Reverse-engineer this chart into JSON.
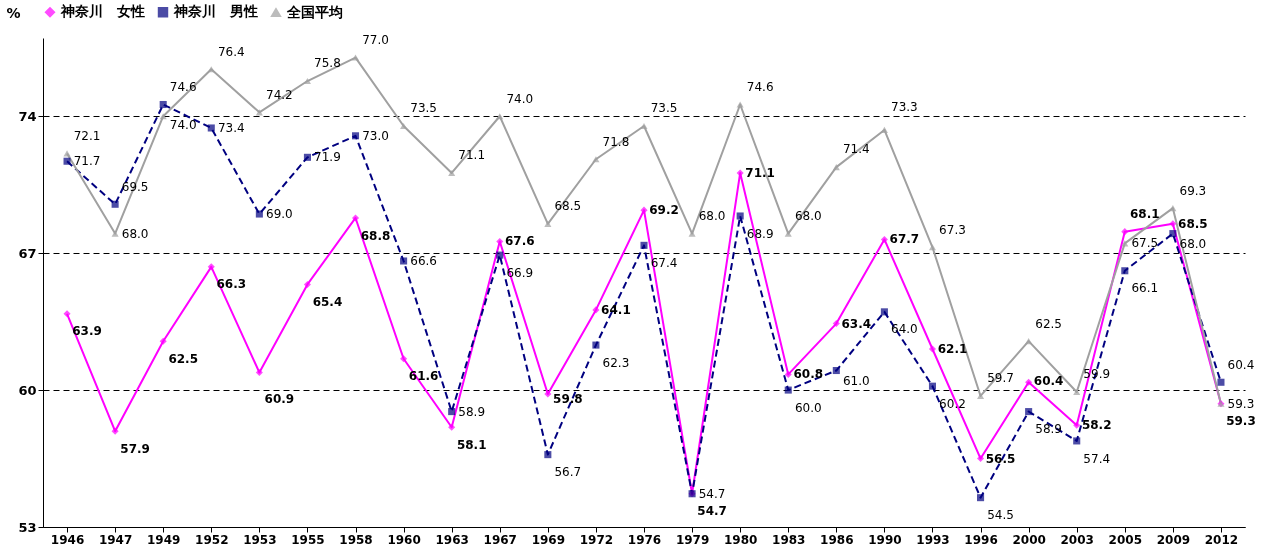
{
  "chart_data": {
    "type": "line",
    "ylabel": "%",
    "categories": [
      "1946",
      "1947",
      "1949",
      "1952",
      "1953",
      "1955",
      "1958",
      "1960",
      "1963",
      "1967",
      "1969",
      "1972",
      "1976",
      "1979",
      "1980",
      "1983",
      "1986",
      "1990",
      "1993",
      "1996",
      "2000",
      "2003",
      "2005",
      "2009",
      "2012"
    ],
    "series": [
      {
        "name": "神奈川　女性",
        "color": "#ff00ff",
        "marker": "diamond",
        "line_style": "solid",
        "values": [
          63.9,
          57.9,
          62.5,
          66.3,
          60.9,
          65.4,
          68.8,
          61.6,
          58.1,
          67.6,
          59.8,
          64.1,
          69.2,
          54.7,
          71.1,
          60.8,
          63.4,
          67.7,
          62.1,
          56.5,
          60.4,
          58.2,
          68.1,
          68.5,
          59.3
        ],
        "value_labels": [
          "63.9",
          "57.9",
          "62.5",
          "66.3",
          "60.9",
          "65.4",
          "68.8",
          "61.6",
          "58.1",
          "67.6",
          "59.8",
          "64.1",
          "69.2",
          "54.7",
          "71.1",
          "60.8",
          "63.4",
          "67.7",
          "62.1",
          "56.5",
          "60.4",
          "58.2",
          "68.1",
          "68.5",
          "59.3"
        ]
      },
      {
        "name": "神奈川　男性",
        "color": "#000080",
        "marker": "square",
        "line_style": "dashed",
        "values": [
          71.7,
          69.5,
          74.6,
          73.4,
          69.0,
          71.9,
          73.0,
          66.6,
          58.9,
          66.9,
          56.7,
          62.3,
          67.4,
          54.7,
          68.9,
          60.0,
          61.0,
          64.0,
          60.2,
          54.5,
          58.9,
          57.4,
          66.1,
          68.0,
          60.4
        ],
        "value_labels": [
          "71.7",
          "69.5",
          "74.6",
          "73.4",
          "69.0",
          "71.9",
          "73.0",
          "66.6",
          "58.9",
          "66.9",
          "56.7",
          "62.3",
          "67.4",
          "54.7",
          "68.9",
          "60.0",
          "61.0",
          "64.0",
          "60.2",
          "54.5",
          "58.9",
          "57.4",
          "66.1",
          "68.0",
          "60.4"
        ]
      },
      {
        "name": "全国平均",
        "color": "#a0a0a0",
        "marker": "triangle",
        "line_style": "solid",
        "values": [
          72.1,
          68.0,
          74.0,
          76.4,
          74.2,
          75.8,
          77.0,
          73.5,
          71.1,
          74.0,
          68.5,
          71.8,
          73.5,
          68.0,
          74.6,
          68.0,
          71.4,
          73.3,
          67.3,
          59.7,
          62.5,
          59.9,
          67.5,
          69.3,
          59.3
        ],
        "value_labels": [
          "72.1",
          "68.0",
          "74.0",
          "76.4",
          "74.2",
          "75.8",
          "77.0",
          "73.5",
          "71.1",
          "74.0",
          "68.5",
          "71.8",
          "73.5",
          "68.0",
          "74.6",
          "68.0",
          "71.4",
          "73.3",
          "67.3",
          "59.7",
          "62.5",
          "59.9",
          "67.5",
          "69.3",
          "59.3"
        ]
      }
    ],
    "ylim": [
      53,
      78
    ],
    "yticks": [
      53,
      60,
      67,
      74
    ],
    "grid": "y",
    "legend": "top",
    "data_labels": true
  }
}
